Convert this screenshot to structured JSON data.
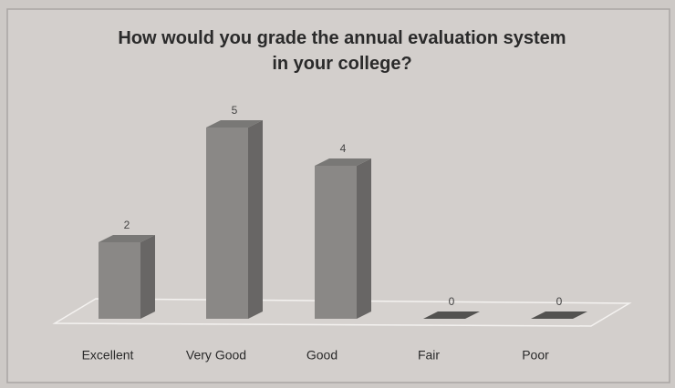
{
  "chart_data": {
    "type": "bar3d",
    "title": "How would you grade the annual evaluation system in your college?",
    "categories": [
      "Excellent",
      "Very Good",
      "Good",
      "Fair",
      "Poor"
    ],
    "values": [
      2,
      5,
      4,
      0,
      0
    ],
    "color": "#8a8886"
  }
}
